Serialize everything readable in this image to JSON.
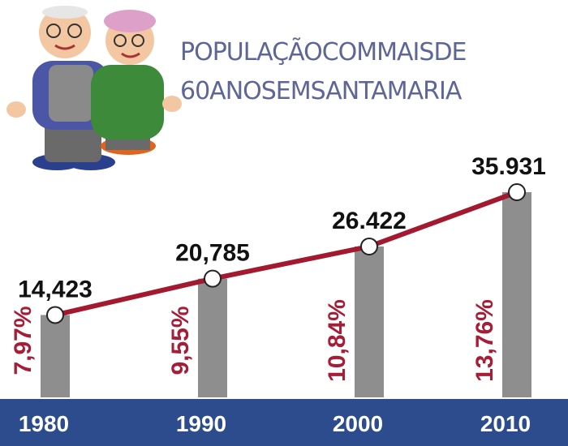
{
  "chart_data": {
    "type": "bar-line",
    "title": [
      "POPULAÇÃOCOMMAISDE",
      "60ANOSEMSANTAMARIA"
    ],
    "categories": [
      "1980",
      "1990",
      "2000",
      "2010"
    ],
    "values": [
      14423,
      20785,
      26422,
      35931
    ],
    "value_labels": [
      "14,423",
      "20,785",
      "26.422",
      "35.931"
    ],
    "percentages": [
      7.97,
      9.55,
      10.84,
      13.76
    ],
    "percentage_labels": [
      "7,97%",
      "9,55%",
      "10,84%",
      "13,76%"
    ],
    "bar_color": "#8e8e8e",
    "line_color": "#a3192f",
    "percentage_color": "#a51d36",
    "band_color": "#2d4c8d"
  }
}
